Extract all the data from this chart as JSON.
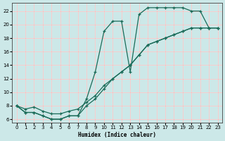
{
  "bg_color": "#cce8e8",
  "grid_white_color": "#ffffff",
  "grid_pink_color": "#f5b8b8",
  "line_color": "#1a6b58",
  "xlabel": "Humidex (Indice chaleur)",
  "xlim": [
    -0.5,
    23.5
  ],
  "ylim": [
    5.5,
    23.2
  ],
  "xticks": [
    0,
    1,
    2,
    3,
    4,
    5,
    6,
    7,
    8,
    9,
    10,
    11,
    12,
    13,
    14,
    15,
    16,
    17,
    18,
    19,
    20,
    21,
    22,
    23
  ],
  "yticks": [
    6,
    8,
    10,
    12,
    14,
    16,
    18,
    20,
    22
  ],
  "curve1_x": [
    0,
    1,
    2,
    3,
    4,
    5,
    6,
    7,
    8,
    9,
    10,
    11,
    12,
    13,
    14,
    15,
    16,
    17,
    18,
    19,
    20,
    21,
    22,
    23
  ],
  "curve1_y": [
    8.0,
    7.0,
    7.0,
    6.5,
    6.0,
    6.0,
    6.5,
    6.5,
    9.0,
    13.0,
    19.0,
    20.5,
    20.5,
    13.0,
    21.5,
    22.5,
    22.5,
    22.5,
    22.5,
    22.5,
    22.0,
    22.0,
    19.5,
    19.5
  ],
  "curve2_x": [
    0,
    1,
    2,
    3,
    4,
    5,
    6,
    7,
    8,
    9,
    10,
    11,
    12,
    13,
    14,
    15,
    16,
    17,
    18,
    19,
    20,
    21,
    22,
    23
  ],
  "curve2_y": [
    8.0,
    7.5,
    7.8,
    7.2,
    6.8,
    6.8,
    7.2,
    7.5,
    8.5,
    9.5,
    11.0,
    12.0,
    13.0,
    14.0,
    15.5,
    17.0,
    17.5,
    18.0,
    18.5,
    19.0,
    19.5,
    19.5,
    19.5,
    19.5
  ],
  "curve3_x": [
    0,
    1,
    2,
    3,
    4,
    5,
    6,
    7,
    8,
    9,
    10,
    11,
    12,
    13,
    14,
    15,
    16,
    17,
    18,
    19,
    20,
    21,
    22,
    23
  ],
  "curve3_y": [
    8.0,
    7.0,
    7.0,
    6.5,
    6.0,
    6.0,
    6.5,
    6.5,
    8.0,
    9.0,
    10.5,
    12.0,
    13.0,
    14.0,
    15.5,
    17.0,
    17.5,
    18.0,
    18.5,
    19.0,
    19.5,
    19.5,
    19.5,
    19.5
  ]
}
